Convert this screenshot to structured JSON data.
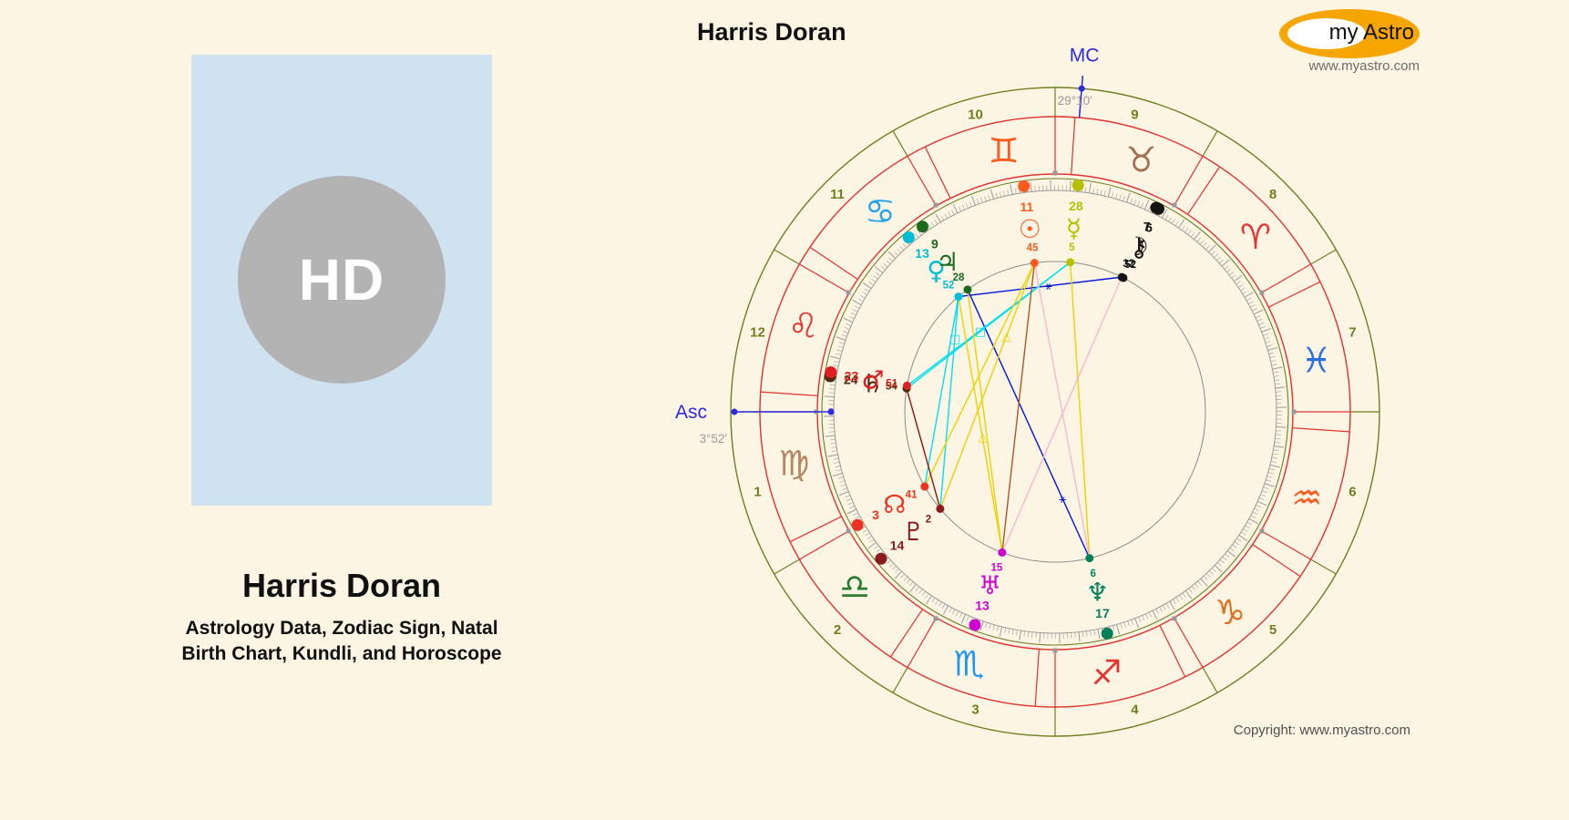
{
  "page": {
    "background": "#fdf5e4"
  },
  "profile_card": {
    "initials": "HD",
    "title": "Harris Doran",
    "subtitle_line1": "Astrology Data, Zodiac Sign, Natal",
    "subtitle_line2": "Birth Chart, Kundli, and Horoscope",
    "panel_color": "#cfe2ef",
    "avatar_color": "#b3b3b3"
  },
  "logo": {
    "word1": "my",
    "word2": "Astro",
    "url": "www.myastro.com",
    "oval_color": "#f7a500"
  },
  "footer": {
    "copyright": "Copyright: www.myastro.com"
  },
  "chart": {
    "heading": "Harris Doran",
    "axes": {
      "asc": {
        "label": "Asc",
        "value": "3°52'",
        "lon": 153.87,
        "color": "#2b2be0"
      },
      "mc": {
        "label": "MC",
        "value": "29°10'",
        "lon": 59.17,
        "color": "#2b2be0"
      }
    },
    "ring_colors": {
      "outer": "#6d7f1f",
      "zodiac": "#e23230",
      "ticks": "#9a9a9a",
      "aspect_circle": "#8a8a8a",
      "house_numbers": "#6d7f1f",
      "degree_text": "#9a9a9a"
    },
    "house_numbers": [
      "1",
      "2",
      "3",
      "4",
      "5",
      "6",
      "7",
      "8",
      "9",
      "10",
      "11",
      "12"
    ],
    "signs": [
      {
        "name": "aries",
        "glyph": "♈",
        "color": "#e53530",
        "start": 0
      },
      {
        "name": "taurus",
        "glyph": "♉",
        "color": "#a56f52",
        "start": 30
      },
      {
        "name": "gemini",
        "glyph": "♊",
        "color": "#ff5a1e",
        "start": 60
      },
      {
        "name": "cancer",
        "glyph": "♋",
        "color": "#25a2ec",
        "start": 90
      },
      {
        "name": "leo",
        "glyph": "♌",
        "color": "#e53530",
        "start": 120
      },
      {
        "name": "virgo",
        "glyph": "♍",
        "color": "#b5855f",
        "start": 150
      },
      {
        "name": "libra",
        "glyph": "♎",
        "color": "#2c7d32",
        "start": 180
      },
      {
        "name": "scorpio",
        "glyph": "♏",
        "color": "#2196f3",
        "start": 210
      },
      {
        "name": "sagittarius",
        "glyph": "♐",
        "color": "#e53530",
        "start": 240
      },
      {
        "name": "capricorn",
        "glyph": "♑",
        "color": "#df6e1e",
        "start": 270
      },
      {
        "name": "aquarius",
        "glyph": "♒",
        "color": "#ff5a1e",
        "start": 300
      },
      {
        "name": "pisces",
        "glyph": "♓",
        "color": "#2a6fe0",
        "start": 330
      }
    ],
    "planets": [
      {
        "name": "sun",
        "glyph": "☉",
        "deg": "11",
        "min": "45",
        "sign": "Gemini",
        "lon": 71.75,
        "color": "#ff5a1e"
      },
      {
        "name": "mercury",
        "glyph": "☿",
        "deg": "28",
        "min": "5",
        "sign": "Taurus",
        "lon": 58.08,
        "color": "#b4c000"
      },
      {
        "name": "chiron",
        "glyph": "⚷",
        "deg": "6",
        "min": "52",
        "sign": "Taurus",
        "lon": 36.87,
        "color": "#141414"
      },
      {
        "name": "moon",
        "glyph": "☽",
        "deg": "7",
        "min": "32",
        "sign": "Taurus",
        "lon": 37.53,
        "color": "#141414"
      },
      {
        "name": "venus",
        "glyph": "♀",
        "deg": "13",
        "min": "52",
        "sign": "Cancer",
        "lon": 103.87,
        "color": "#00bcd4"
      },
      {
        "name": "jupiter",
        "glyph": "♃",
        "deg": "9",
        "min": "28",
        "sign": "Cancer",
        "lon": 99.47,
        "color": "#1b6b1f"
      },
      {
        "name": "saturn",
        "glyph": "♄",
        "deg": "24",
        "min": "54",
        "sign": "Leo",
        "lon": 144.9,
        "color": "#4e2a12"
      },
      {
        "name": "mars",
        "glyph": "♂",
        "deg": "23",
        "min": "51",
        "sign": "Leo",
        "lon": 143.85,
        "color": "#e02020"
      },
      {
        "name": "north_node",
        "glyph": "☊",
        "deg": "3",
        "min": "41",
        "sign": "Libra",
        "lon": 183.68,
        "color": "#ee3322"
      },
      {
        "name": "pluto",
        "glyph": "♇",
        "deg": "14",
        "min": "2",
        "sign": "Libra",
        "lon": 194.03,
        "color": "#8b1a1a"
      },
      {
        "name": "uranus",
        "glyph": "♅",
        "deg": "13",
        "min": "15",
        "sign": "Scorpio",
        "lon": 223.25,
        "color": "#cf00cf"
      },
      {
        "name": "neptune",
        "glyph": "♆",
        "deg": "17",
        "min": "6",
        "sign": "Sagittarius",
        "lon": 257.1,
        "color": "#00815a"
      }
    ],
    "aspect_lines": [
      {
        "from": "venus",
        "to": "moon",
        "color": "#0013dd",
        "symbol": "⚹",
        "t": 0.55
      },
      {
        "from": "jupiter",
        "to": "neptune",
        "color": "#0013dd",
        "symbol": "⚹",
        "t": 0.78
      },
      {
        "from": "venus",
        "to": "pluto",
        "color": "#00dff0",
        "symbol": "□",
        "t": 0.2
      },
      {
        "from": "mercury",
        "to": "saturn",
        "color": "#00dff0",
        "symbol": "□",
        "t": 0.55
      },
      {
        "from": "mercury",
        "to": "mars",
        "color": "#00dff0",
        "symbol": "",
        "t": 0.5
      },
      {
        "from": "venus",
        "to": "north_node",
        "color": "#00dff0",
        "symbol": "",
        "t": 0.5
      },
      {
        "from": "sun",
        "to": "pluto",
        "color": "#efd000",
        "symbol": "△",
        "t": 0.3
      },
      {
        "from": "venus",
        "to": "uranus",
        "color": "#efd000",
        "symbol": "△",
        "t": 0.55
      },
      {
        "from": "jupiter",
        "to": "uranus",
        "color": "#efd000",
        "symbol": "",
        "t": 0.5
      },
      {
        "from": "sun",
        "to": "north_node",
        "color": "#efd000",
        "symbol": "",
        "t": 0.5
      },
      {
        "from": "mercury",
        "to": "neptune",
        "color": "#efd000",
        "symbol": "",
        "t": 0.5
      },
      {
        "from": "sun",
        "to": "uranus",
        "color": "#a85a20",
        "symbol": "",
        "t": 0.5
      },
      {
        "from": "moon",
        "to": "uranus",
        "color": "#f5b8cd",
        "symbol": "",
        "t": 0.5
      },
      {
        "from": "sun",
        "to": "neptune",
        "color": "#f5b8cd",
        "symbol": "",
        "t": 0.5
      },
      {
        "from": "saturn",
        "to": "pluto",
        "color": "#8b1515",
        "symbol": "",
        "t": 0.5
      }
    ]
  }
}
